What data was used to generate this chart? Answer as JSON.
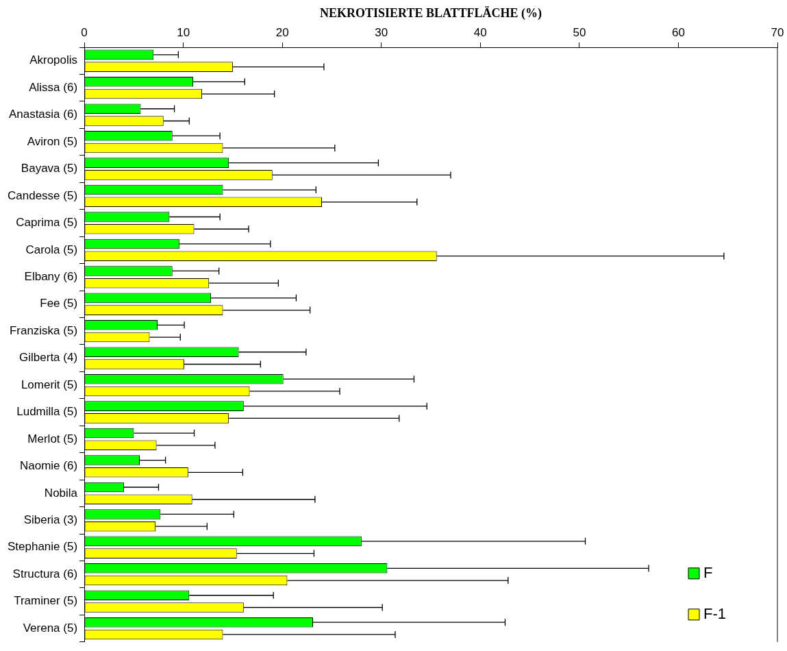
{
  "chart_data": {
    "type": "bar",
    "orientation": "horizontal",
    "xlabel": "NEKROTISIERTE BLATTFLÄCHE (%)",
    "categories": [
      "Akropolis",
      "Alissa (6)",
      "Anastasia (6)",
      "Aviron (5)",
      "Bayava (5)",
      "Candesse (5)",
      "Caprima (5)",
      "Carola (5)",
      "Elbany (6)",
      "Fee (5)",
      "Franziska (5)",
      "Gilberta (4)",
      "Lomerit (5)",
      "Ludmilla (5)",
      "Merlot (5)",
      "Naomie (6)",
      "Nobila",
      "Siberia (3)",
      "Stephanie (5)",
      "Structura (6)",
      "Traminer (5)",
      "Verena (5)"
    ],
    "series": [
      {
        "name": "F",
        "color": "#00ff00",
        "values": [
          7.0,
          11.0,
          5.7,
          8.9,
          14.6,
          14.0,
          8.6,
          9.6,
          8.9,
          12.8,
          7.4,
          15.6,
          20.1,
          16.1,
          5.0,
          5.6,
          4.0,
          7.7,
          28.0,
          30.6,
          10.6,
          23.1
        ],
        "errors": [
          [
            7.0,
            9.5
          ],
          [
            11.0,
            16.2
          ],
          [
            5.7,
            9.1
          ],
          [
            8.9,
            13.7
          ],
          [
            14.6,
            29.7
          ],
          [
            14.0,
            23.4
          ],
          [
            8.6,
            13.7
          ],
          [
            9.6,
            18.8
          ],
          [
            8.9,
            13.6
          ],
          [
            12.8,
            21.4
          ],
          [
            7.4,
            10.1
          ],
          [
            15.6,
            22.4
          ],
          [
            20.1,
            33.3
          ],
          [
            16.1,
            34.6
          ],
          [
            5.0,
            11.1
          ],
          [
            5.6,
            8.2
          ],
          [
            4.0,
            7.5
          ],
          [
            7.7,
            15.1
          ],
          [
            28.0,
            50.6
          ],
          [
            30.6,
            57.0
          ],
          [
            10.6,
            19.1
          ],
          [
            23.1,
            42.5
          ]
        ]
      },
      {
        "name": "F-1",
        "color": "#ffff00",
        "values": [
          15.0,
          11.9,
          8.0,
          14.0,
          19.0,
          24.0,
          11.1,
          35.6,
          12.6,
          14.0,
          6.6,
          10.1,
          16.7,
          14.6,
          7.3,
          10.5,
          10.9,
          7.2,
          15.4,
          20.5,
          16.1,
          14.0
        ],
        "errors": [
          [
            15.0,
            24.2
          ],
          [
            11.9,
            19.2
          ],
          [
            8.0,
            10.6
          ],
          [
            14.0,
            25.3
          ],
          [
            19.0,
            37.0
          ],
          [
            24.0,
            33.6
          ],
          [
            11.1,
            16.6
          ],
          [
            35.6,
            64.6
          ],
          [
            12.6,
            19.6
          ],
          [
            14.0,
            22.8
          ],
          [
            6.6,
            9.7
          ],
          [
            10.1,
            17.8
          ],
          [
            16.7,
            25.8
          ],
          [
            14.6,
            31.8
          ],
          [
            7.3,
            13.2
          ],
          [
            10.5,
            16.0
          ],
          [
            10.9,
            23.3
          ],
          [
            7.2,
            12.4
          ],
          [
            15.4,
            23.2
          ],
          [
            20.5,
            42.8
          ],
          [
            16.1,
            30.1
          ],
          [
            14.0,
            31.4
          ]
        ]
      }
    ],
    "xlim": [
      0,
      70
    ],
    "xticks": [
      0,
      10,
      20,
      30,
      40,
      50,
      60,
      70
    ],
    "grid": false,
    "legend": "bottom right"
  }
}
